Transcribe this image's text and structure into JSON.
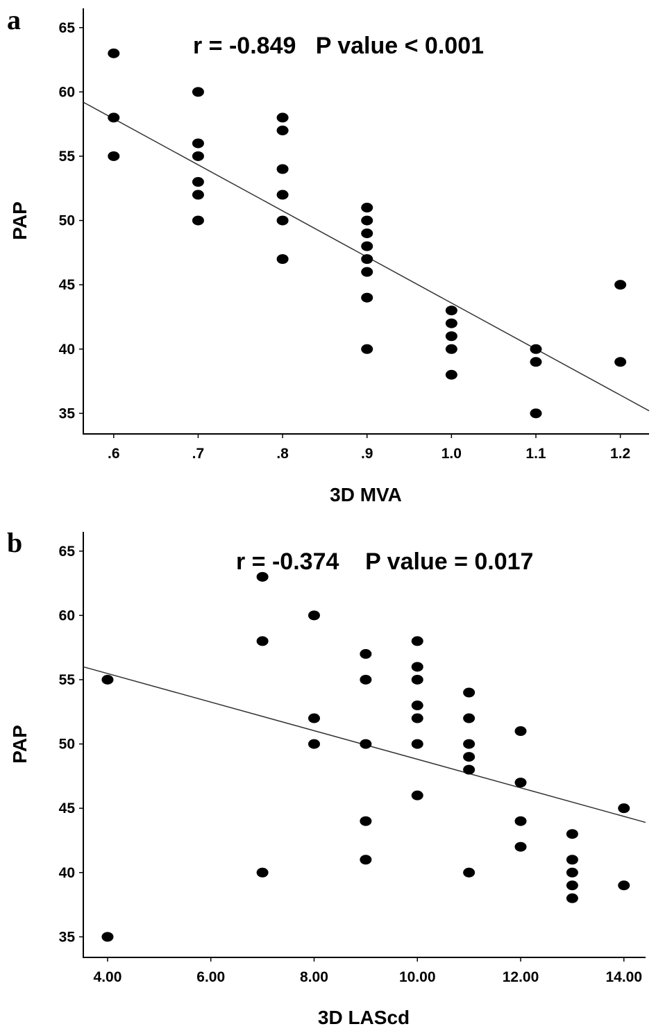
{
  "chart_data": [
    {
      "type": "scatter",
      "panel_label": "a",
      "annotation": "r = -0.849   P value < 0.001",
      "xlabel": "3D MVA",
      "ylabel": "PAP",
      "x_ticks": [
        0.6,
        0.7,
        0.8,
        0.9,
        1.0,
        1.1,
        1.2
      ],
      "x_tick_labels": [
        ".6",
        ".7",
        ".8",
        ".9",
        "1.0",
        "1.1",
        "1.2"
      ],
      "y_ticks": [
        35,
        40,
        45,
        50,
        55,
        60,
        65
      ],
      "y_tick_labels": [
        "35",
        "40",
        "45",
        "50",
        "55",
        "60",
        "65"
      ],
      "xlim": [
        0.564,
        1.234
      ],
      "ylim": [
        33.4,
        66.5
      ],
      "grid": false,
      "legend": "none",
      "points": [
        {
          "x": 0.6,
          "y": 63
        },
        {
          "x": 0.6,
          "y": 58
        },
        {
          "x": 0.6,
          "y": 55
        },
        {
          "x": 0.7,
          "y": 60
        },
        {
          "x": 0.7,
          "y": 56
        },
        {
          "x": 0.7,
          "y": 55
        },
        {
          "x": 0.7,
          "y": 53
        },
        {
          "x": 0.7,
          "y": 52
        },
        {
          "x": 0.7,
          "y": 50
        },
        {
          "x": 0.8,
          "y": 58
        },
        {
          "x": 0.8,
          "y": 57
        },
        {
          "x": 0.8,
          "y": 54
        },
        {
          "x": 0.8,
          "y": 52
        },
        {
          "x": 0.8,
          "y": 50
        },
        {
          "x": 0.8,
          "y": 47
        },
        {
          "x": 0.9,
          "y": 51
        },
        {
          "x": 0.9,
          "y": 50
        },
        {
          "x": 0.9,
          "y": 49
        },
        {
          "x": 0.9,
          "y": 48
        },
        {
          "x": 0.9,
          "y": 47
        },
        {
          "x": 0.9,
          "y": 46
        },
        {
          "x": 0.9,
          "y": 44
        },
        {
          "x": 0.9,
          "y": 40
        },
        {
          "x": 1.0,
          "y": 43
        },
        {
          "x": 1.0,
          "y": 42
        },
        {
          "x": 1.0,
          "y": 41
        },
        {
          "x": 1.0,
          "y": 40
        },
        {
          "x": 1.0,
          "y": 38
        },
        {
          "x": 1.1,
          "y": 40
        },
        {
          "x": 1.1,
          "y": 39
        },
        {
          "x": 1.1,
          "y": 35
        },
        {
          "x": 1.2,
          "y": 45
        },
        {
          "x": 1.2,
          "y": 39
        }
      ],
      "fit_line": {
        "x": [
          0.564,
          1.234
        ],
        "y": [
          59.2,
          35.2
        ]
      }
    },
    {
      "type": "scatter",
      "panel_label": "b",
      "annotation": "r = -0.374    P value = 0.017",
      "xlabel": "3D LAScd",
      "ylabel": "PAP",
      "x_ticks": [
        4,
        6,
        8,
        10,
        12,
        14
      ],
      "x_tick_labels": [
        "4.00",
        "6.00",
        "8.00",
        "10.00",
        "12.00",
        "14.00"
      ],
      "y_ticks": [
        35,
        40,
        45,
        50,
        55,
        60,
        65
      ],
      "y_tick_labels": [
        "35",
        "40",
        "45",
        "50",
        "55",
        "60",
        "65"
      ],
      "xlim": [
        3.53,
        14.42
      ],
      "ylim": [
        33.4,
        66.5
      ],
      "grid": false,
      "legend": "none",
      "points": [
        {
          "x": 4,
          "y": 55
        },
        {
          "x": 4,
          "y": 35
        },
        {
          "x": 7,
          "y": 63
        },
        {
          "x": 7,
          "y": 58
        },
        {
          "x": 7,
          "y": 40
        },
        {
          "x": 8,
          "y": 60
        },
        {
          "x": 8,
          "y": 52
        },
        {
          "x": 8,
          "y": 50
        },
        {
          "x": 9,
          "y": 57
        },
        {
          "x": 9,
          "y": 55
        },
        {
          "x": 9,
          "y": 50
        },
        {
          "x": 9,
          "y": 44
        },
        {
          "x": 9,
          "y": 41
        },
        {
          "x": 10,
          "y": 58
        },
        {
          "x": 10,
          "y": 56
        },
        {
          "x": 10,
          "y": 55
        },
        {
          "x": 10,
          "y": 53
        },
        {
          "x": 10,
          "y": 52
        },
        {
          "x": 10,
          "y": 50
        },
        {
          "x": 10,
          "y": 46
        },
        {
          "x": 11,
          "y": 54
        },
        {
          "x": 11,
          "y": 52
        },
        {
          "x": 11,
          "y": 50
        },
        {
          "x": 11,
          "y": 49
        },
        {
          "x": 11,
          "y": 48
        },
        {
          "x": 11,
          "y": 40
        },
        {
          "x": 12,
          "y": 51
        },
        {
          "x": 12,
          "y": 47
        },
        {
          "x": 12,
          "y": 44
        },
        {
          "x": 12,
          "y": 42
        },
        {
          "x": 13,
          "y": 43
        },
        {
          "x": 13,
          "y": 41
        },
        {
          "x": 13,
          "y": 40
        },
        {
          "x": 13,
          "y": 39
        },
        {
          "x": 13,
          "y": 38
        },
        {
          "x": 14,
          "y": 45
        },
        {
          "x": 14,
          "y": 39
        }
      ],
      "fit_line": {
        "x": [
          3.53,
          14.42
        ],
        "y": [
          56.0,
          43.9
        ]
      }
    }
  ]
}
